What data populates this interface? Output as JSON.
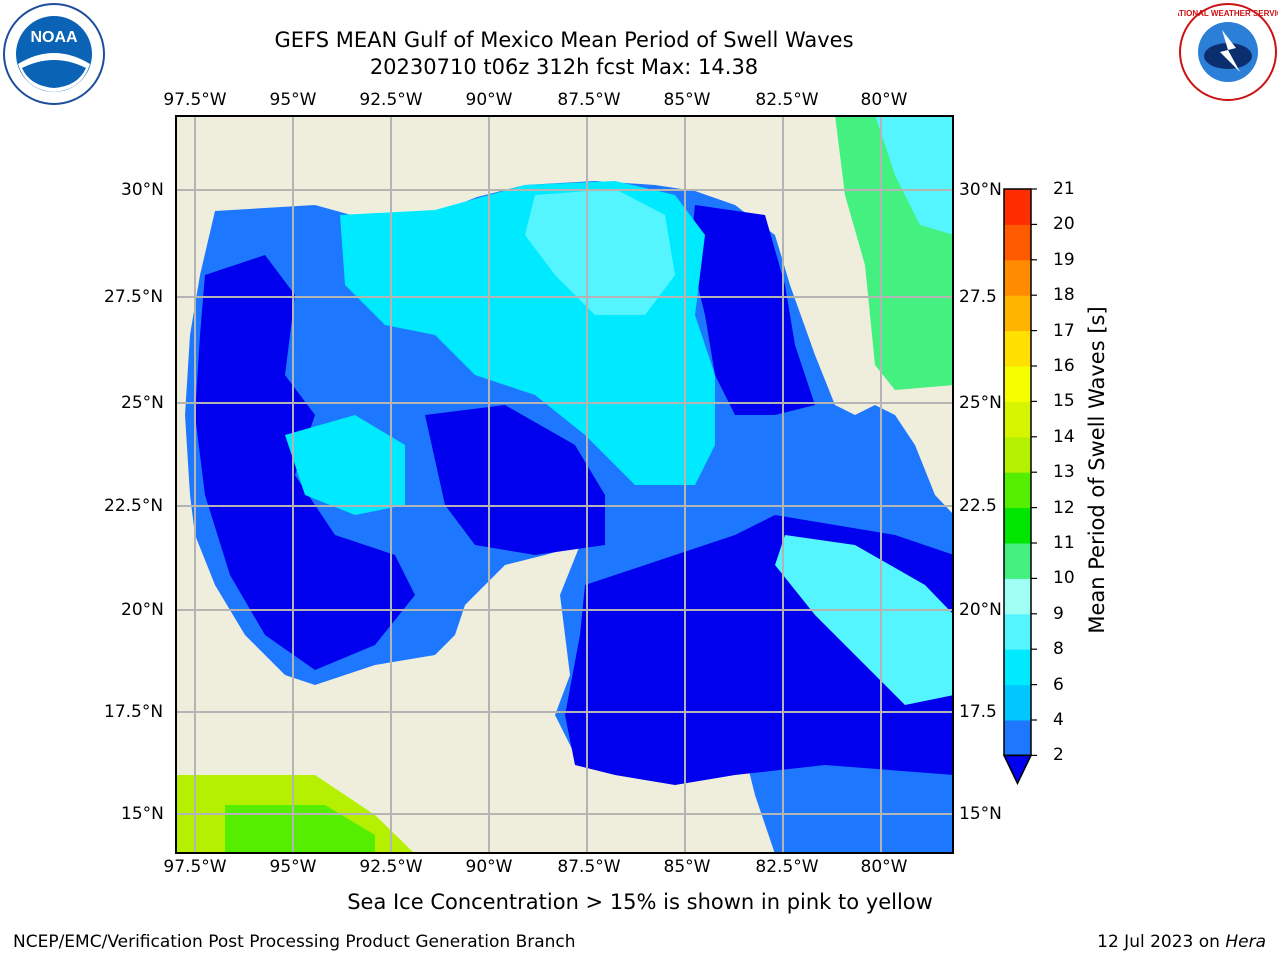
{
  "header": {
    "title_line1": "GEFS MEAN Gulf of Mexico Mean Period of Swell Waves",
    "title_line2": "20230710 t06z 312h fcst   Max: 14.38"
  },
  "logos": {
    "left": {
      "name": "noaa-logo",
      "text": "NOAA"
    },
    "right": {
      "name": "nws-logo",
      "text": "NATIONAL WEATHER SERVICE"
    }
  },
  "map": {
    "lon_labels": [
      "97.5°W",
      "95°W",
      "92.5°W",
      "90°W",
      "87.5°W",
      "85°W",
      "82.5°W",
      "80°W"
    ],
    "lat_labels_left": [
      "30°N",
      "27.5°N",
      "25°N",
      "22.5°N",
      "20°N",
      "17.5°N",
      "15°N"
    ],
    "lat_labels_right": [
      "30°N",
      "27.5",
      "25°N",
      "22.5",
      "20°N",
      "17.5",
      "15°N"
    ],
    "colors": {
      "land": "#efeddc",
      "ocean_low": "#0000ee",
      "ocean_mid": "#1e78ff",
      "ocean_high": "#00eaff",
      "ocean_top": "#55f5ff",
      "green": "#44f080",
      "lime": "#b4f000"
    }
  },
  "colorbar": {
    "title": "Mean Period of Swell Waves [s]",
    "ticks": [
      "2",
      "4",
      "6",
      "8",
      "9",
      "10",
      "11",
      "12",
      "13",
      "14",
      "15",
      "16",
      "17",
      "18",
      "19",
      "20",
      "21"
    ],
    "colors": [
      "#1e78ff",
      "#00c8ff",
      "#00eaff",
      "#55f5ff",
      "#a0fff5",
      "#44f080",
      "#00e600",
      "#55ee00",
      "#b4f000",
      "#d7f500",
      "#f5ff00",
      "#ffe000",
      "#ffb400",
      "#ff8c00",
      "#ff5a00",
      "#ff2d00"
    ],
    "extend_color": "#0000ee"
  },
  "footer": {
    "note": "Sea Ice Concentration > 15% is shown in pink to yellow",
    "credit": "NCEP/EMC/Verification Post Processing Product Generation Branch",
    "date_prefix": "12 Jul 2023 on ",
    "date_host": "Hera"
  }
}
